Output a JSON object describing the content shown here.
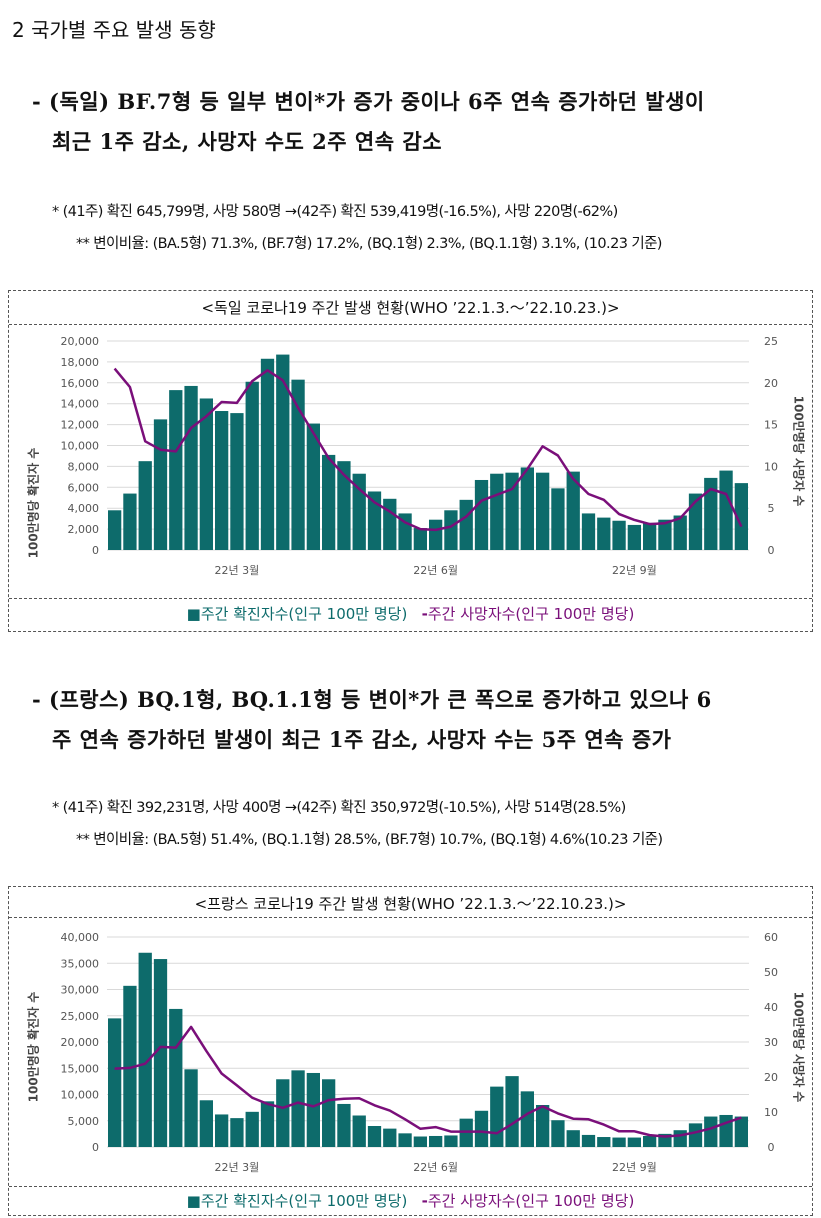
{
  "section": {
    "title": "2  국가별 주요 발생 동향"
  },
  "germany": {
    "headline_line1": "- (독일) BF.7형 등 일부 변이*가 증가 중이나 6주 연속 증가하던 발생이",
    "headline_line2": "최근 1주 감소, 사망자 수도 2주 연속 감소",
    "note1": "*  (41주) 확진 645,799명, 사망 580명 →(42주) 확진 539,419명(-16.5%), 사망 220명(-62%)",
    "note2": "**  변이비율: (BA.5형) 71.3%, (BF.7형) 17.2%, (BQ.1형) 2.3%, (BQ.1.1형) 3.1%, (10.23 기준)",
    "chart_title": "<독일 코로나19 주간 발생 현황(WHO ’22.1.3.～’22.10.23.)>",
    "legend_bar": "주간 확진자수(인구 100만 명당)",
    "legend_line": "주간 사망자수(인구 100만 명당)",
    "ylabel_left": "100만명당 확진자 수",
    "ylabel_right": "100만명당 사망자 수"
  },
  "france": {
    "headline_line1": "- (프랑스) BQ.1형, BQ.1.1형 등 변이*가 큰 폭으로 증가하고 있으나 6",
    "headline_line2": "주 연속 증가하던 발생이 최근 1주 감소, 사망자 수는 5주 연속 증가",
    "note1": "*  (41주) 확진 392,231명, 사망 400명 →(42주) 확진 350,972명(-10.5%), 사망 514명(28.5%)",
    "note2": "**  변이비율: (BA.5형) 51.4%, (BQ.1.1형) 28.5%, (BF.7형) 10.7%, (BQ.1형) 4.6%(10.23 기준)",
    "chart_title": "<프랑스 코로나19 주간 발생 현황(WHO ’22.1.3.～’22.10.23.)>",
    "legend_bar": "주간 확진자수(인구 100만 명당)",
    "legend_line": "주간 사망자수(인구 100만 명당)",
    "ylabel_left": "100만명당 확진자 수",
    "ylabel_right": "100만명당 사망자 수"
  },
  "colors": {
    "bar": "#0d6b6b",
    "line": "#7a0f7a",
    "grid": "#d9d9d9"
  },
  "chart_data": [
    {
      "type": "bar",
      "title": "<독일 코로나19 주간 발생 현황(WHO ’22.1.3.～’22.10.23.)>",
      "ylabel": "100만명당 확진자 수",
      "y2label": "100만명당 사망자 수",
      "xticks": [
        {
          "label": "22년 3월",
          "index": 8
        },
        {
          "label": "22년 6월",
          "index": 21
        },
        {
          "label": "22년 9월",
          "index": 34
        }
      ],
      "ylim": [
        0,
        20000
      ],
      "yticks": [
        "0",
        "2,000",
        "4,000",
        "6,000",
        "8,000",
        "10,000",
        "12,000",
        "14,000",
        "16,000",
        "18,000",
        "20,000"
      ],
      "yticks_values": [
        0,
        2000,
        4000,
        6000,
        8000,
        10000,
        12000,
        14000,
        16000,
        18000,
        20000
      ],
      "y2lim": [
        0,
        25
      ],
      "y2ticks": [
        "0",
        "5",
        "10",
        "15",
        "20",
        "25"
      ],
      "y2ticks_values": [
        0,
        5,
        10,
        15,
        20,
        25
      ],
      "series": [
        {
          "name": "주간 확진자수(인구 100만 명당)",
          "type": "bar",
          "values": [
            3800,
            5400,
            8500,
            12500,
            15300,
            15700,
            14500,
            13300,
            13100,
            16100,
            18300,
            18700,
            16300,
            12100,
            9100,
            8500,
            7300,
            5600,
            4900,
            3500,
            2100,
            2900,
            3800,
            4800,
            6700,
            7300,
            7400,
            7900,
            7400,
            5900,
            7500,
            3500,
            3100,
            2800,
            2400,
            2600,
            2900,
            3300,
            5400,
            6900,
            7600,
            6400
          ]
        },
        {
          "name": "주간 사망자수(인구 100만 명당)",
          "type": "line",
          "values": [
            21.7,
            19.5,
            13.0,
            12.0,
            11.8,
            14.6,
            16.0,
            17.7,
            17.6,
            20.2,
            21.5,
            20.3,
            17.0,
            14.0,
            11.0,
            9.0,
            7.3,
            5.7,
            4.6,
            3.3,
            2.5,
            2.4,
            2.8,
            4.0,
            5.9,
            6.6,
            7.3,
            9.7,
            12.4,
            11.3,
            8.5,
            6.7,
            6.0,
            4.3,
            3.6,
            3.1,
            3.2,
            3.8,
            5.8,
            7.3,
            6.7,
            2.8
          ]
        }
      ]
    },
    {
      "type": "bar",
      "title": "<프랑스 코로나19 주간 발생 현황(WHO ’22.1.3.～’22.10.23.)>",
      "ylabel": "100만명당 확진자 수",
      "y2label": "100만명당 사망자 수",
      "xticks": [
        {
          "label": "22년 3월",
          "index": 8
        },
        {
          "label": "22년 6월",
          "index": 21
        },
        {
          "label": "22년 9월",
          "index": 34
        }
      ],
      "ylim": [
        0,
        40000
      ],
      "yticks": [
        "0",
        "5,000",
        "10,000",
        "15,000",
        "20,000",
        "25,000",
        "30,000",
        "35,000",
        "40,000"
      ],
      "yticks_values": [
        0,
        5000,
        10000,
        15000,
        20000,
        25000,
        30000,
        35000,
        40000
      ],
      "y2lim": [
        0,
        60
      ],
      "y2ticks": [
        "0",
        "10",
        "20",
        "30",
        "40",
        "50",
        "60"
      ],
      "y2ticks_values": [
        0,
        10,
        20,
        30,
        40,
        50,
        60
      ],
      "series": [
        {
          "name": "주간 확진자수(인구 100만 명당)",
          "type": "bar",
          "values": [
            24500,
            30700,
            37000,
            35800,
            26300,
            14800,
            8900,
            6200,
            5500,
            6700,
            8700,
            12900,
            14600,
            14100,
            12900,
            8200,
            6000,
            4000,
            3500,
            2600,
            2000,
            2100,
            2200,
            5400,
            6900,
            11500,
            13500,
            10600,
            8000,
            5100,
            3200,
            2300,
            1900,
            1800,
            1800,
            2100,
            2500,
            3200,
            4500,
            5800,
            6100,
            5800
          ]
        },
        {
          "name": "주간 사망자수(인구 100만 명당)",
          "type": "line",
          "values": [
            22.4,
            22.6,
            23.8,
            28.6,
            28.4,
            34.3,
            27.4,
            21.0,
            17.6,
            14.1,
            12.3,
            11.2,
            12.7,
            11.6,
            13.4,
            13.8,
            13.9,
            11.9,
            10.4,
            7.9,
            5.2,
            5.7,
            4.4,
            4.4,
            4.4,
            3.9,
            6.6,
            9.5,
            11.6,
            9.6,
            8.1,
            7.9,
            6.4,
            4.5,
            4.5,
            3.4,
            3.0,
            3.3,
            4.2,
            5.3,
            6.9,
            8.4
          ]
        }
      ]
    }
  ]
}
